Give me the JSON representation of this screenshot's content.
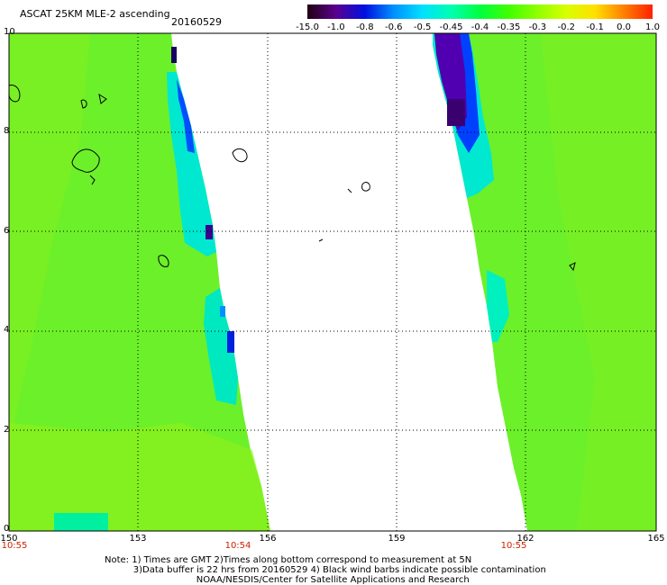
{
  "header": {
    "title": "ASCAT 25KM MLE-2 ascending",
    "date": "20160529"
  },
  "colorbar": {
    "labels": [
      "-15.0",
      "-1.0",
      "-0.8",
      "-0.6",
      "-0.5",
      "-0.45",
      "-0.4",
      "-0.35",
      "-0.3",
      "-0.2",
      "-0.1",
      "0.0",
      "1.0"
    ],
    "colors": [
      "#200010",
      "#5a0090",
      "#0010e0",
      "#0090ff",
      "#00e0ff",
      "#00ffb0",
      "#00ff40",
      "#40ff00",
      "#90ff00",
      "#d8ff00",
      "#ffe000",
      "#ff8000",
      "#ff2000"
    ]
  },
  "axes": {
    "x_ticks": [
      "150",
      "153",
      "156",
      "159",
      "162",
      "165"
    ],
    "y_ticks": [
      "0",
      "2",
      "4",
      "6",
      "8",
      "10"
    ],
    "times": [
      "10:55",
      "10:54",
      "10:55"
    ]
  },
  "footer": {
    "note_line1": "Note: 1) Times are GMT 2)Times along bottom correspond to measurement at 5N",
    "note_line2": "3)Data buffer is 22 hrs from 20160529 4) Black wind barbs indicate possible contamination",
    "note_line3": "NOAA/NESDIS/Center for Satellite Applications and Research"
  }
}
